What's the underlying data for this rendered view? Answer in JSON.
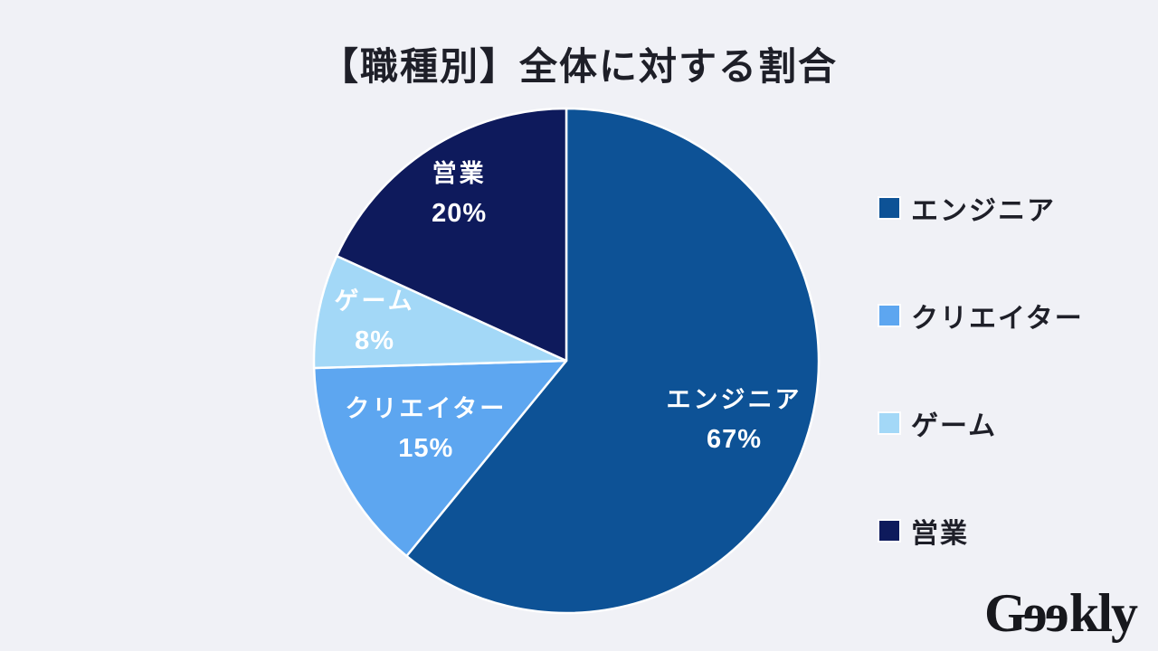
{
  "title": "【職種別】全体に対する割合",
  "colors": {
    "background": "#f0f1f6",
    "title_text": "#1e1f28",
    "slice_label_text": "#ffffff",
    "legend_text": "#1e1f28",
    "divider": "#ffffff",
    "logo_text": "#17181d"
  },
  "chart_data": {
    "type": "pie",
    "title": "【職種別】全体に対する割合",
    "categories": [
      "エンジニア",
      "クリエイター",
      "ゲーム",
      "営業"
    ],
    "values": [
      67,
      15,
      8,
      20
    ],
    "unit": "%",
    "slices": [
      {
        "label": "エンジニア",
        "value": 67,
        "percent_label": "67%",
        "color": "#0d5296"
      },
      {
        "label": "クリエイター",
        "value": 15,
        "percent_label": "15%",
        "color": "#5da6f0"
      },
      {
        "label": "ゲーム",
        "value": 8,
        "percent_label": "8%",
        "color": "#a3d8f7"
      },
      {
        "label": "営業",
        "value": 20,
        "percent_label": "20%",
        "color": "#0e1a5c"
      }
    ],
    "layout": {
      "start_angle_deg": 0,
      "direction": "clockwise",
      "angles_proportional_to_value_sum": 110,
      "label_radius_fractions": [
        0.706,
        0.62,
        0.775,
        0.785
      ],
      "legend_position": "right",
      "grid": false
    }
  },
  "legend": {
    "items": [
      {
        "label": "エンジニア",
        "color": "#0d5296"
      },
      {
        "label": "クリエイター",
        "color": "#5da6f0"
      },
      {
        "label": "ゲーム",
        "color": "#a3d8f7"
      },
      {
        "label": "営業",
        "color": "#0e1a5c"
      }
    ]
  },
  "logo": {
    "text": "Geekly",
    "style_note": "serif wordmark, both e glyphs mirrored horizontally"
  }
}
